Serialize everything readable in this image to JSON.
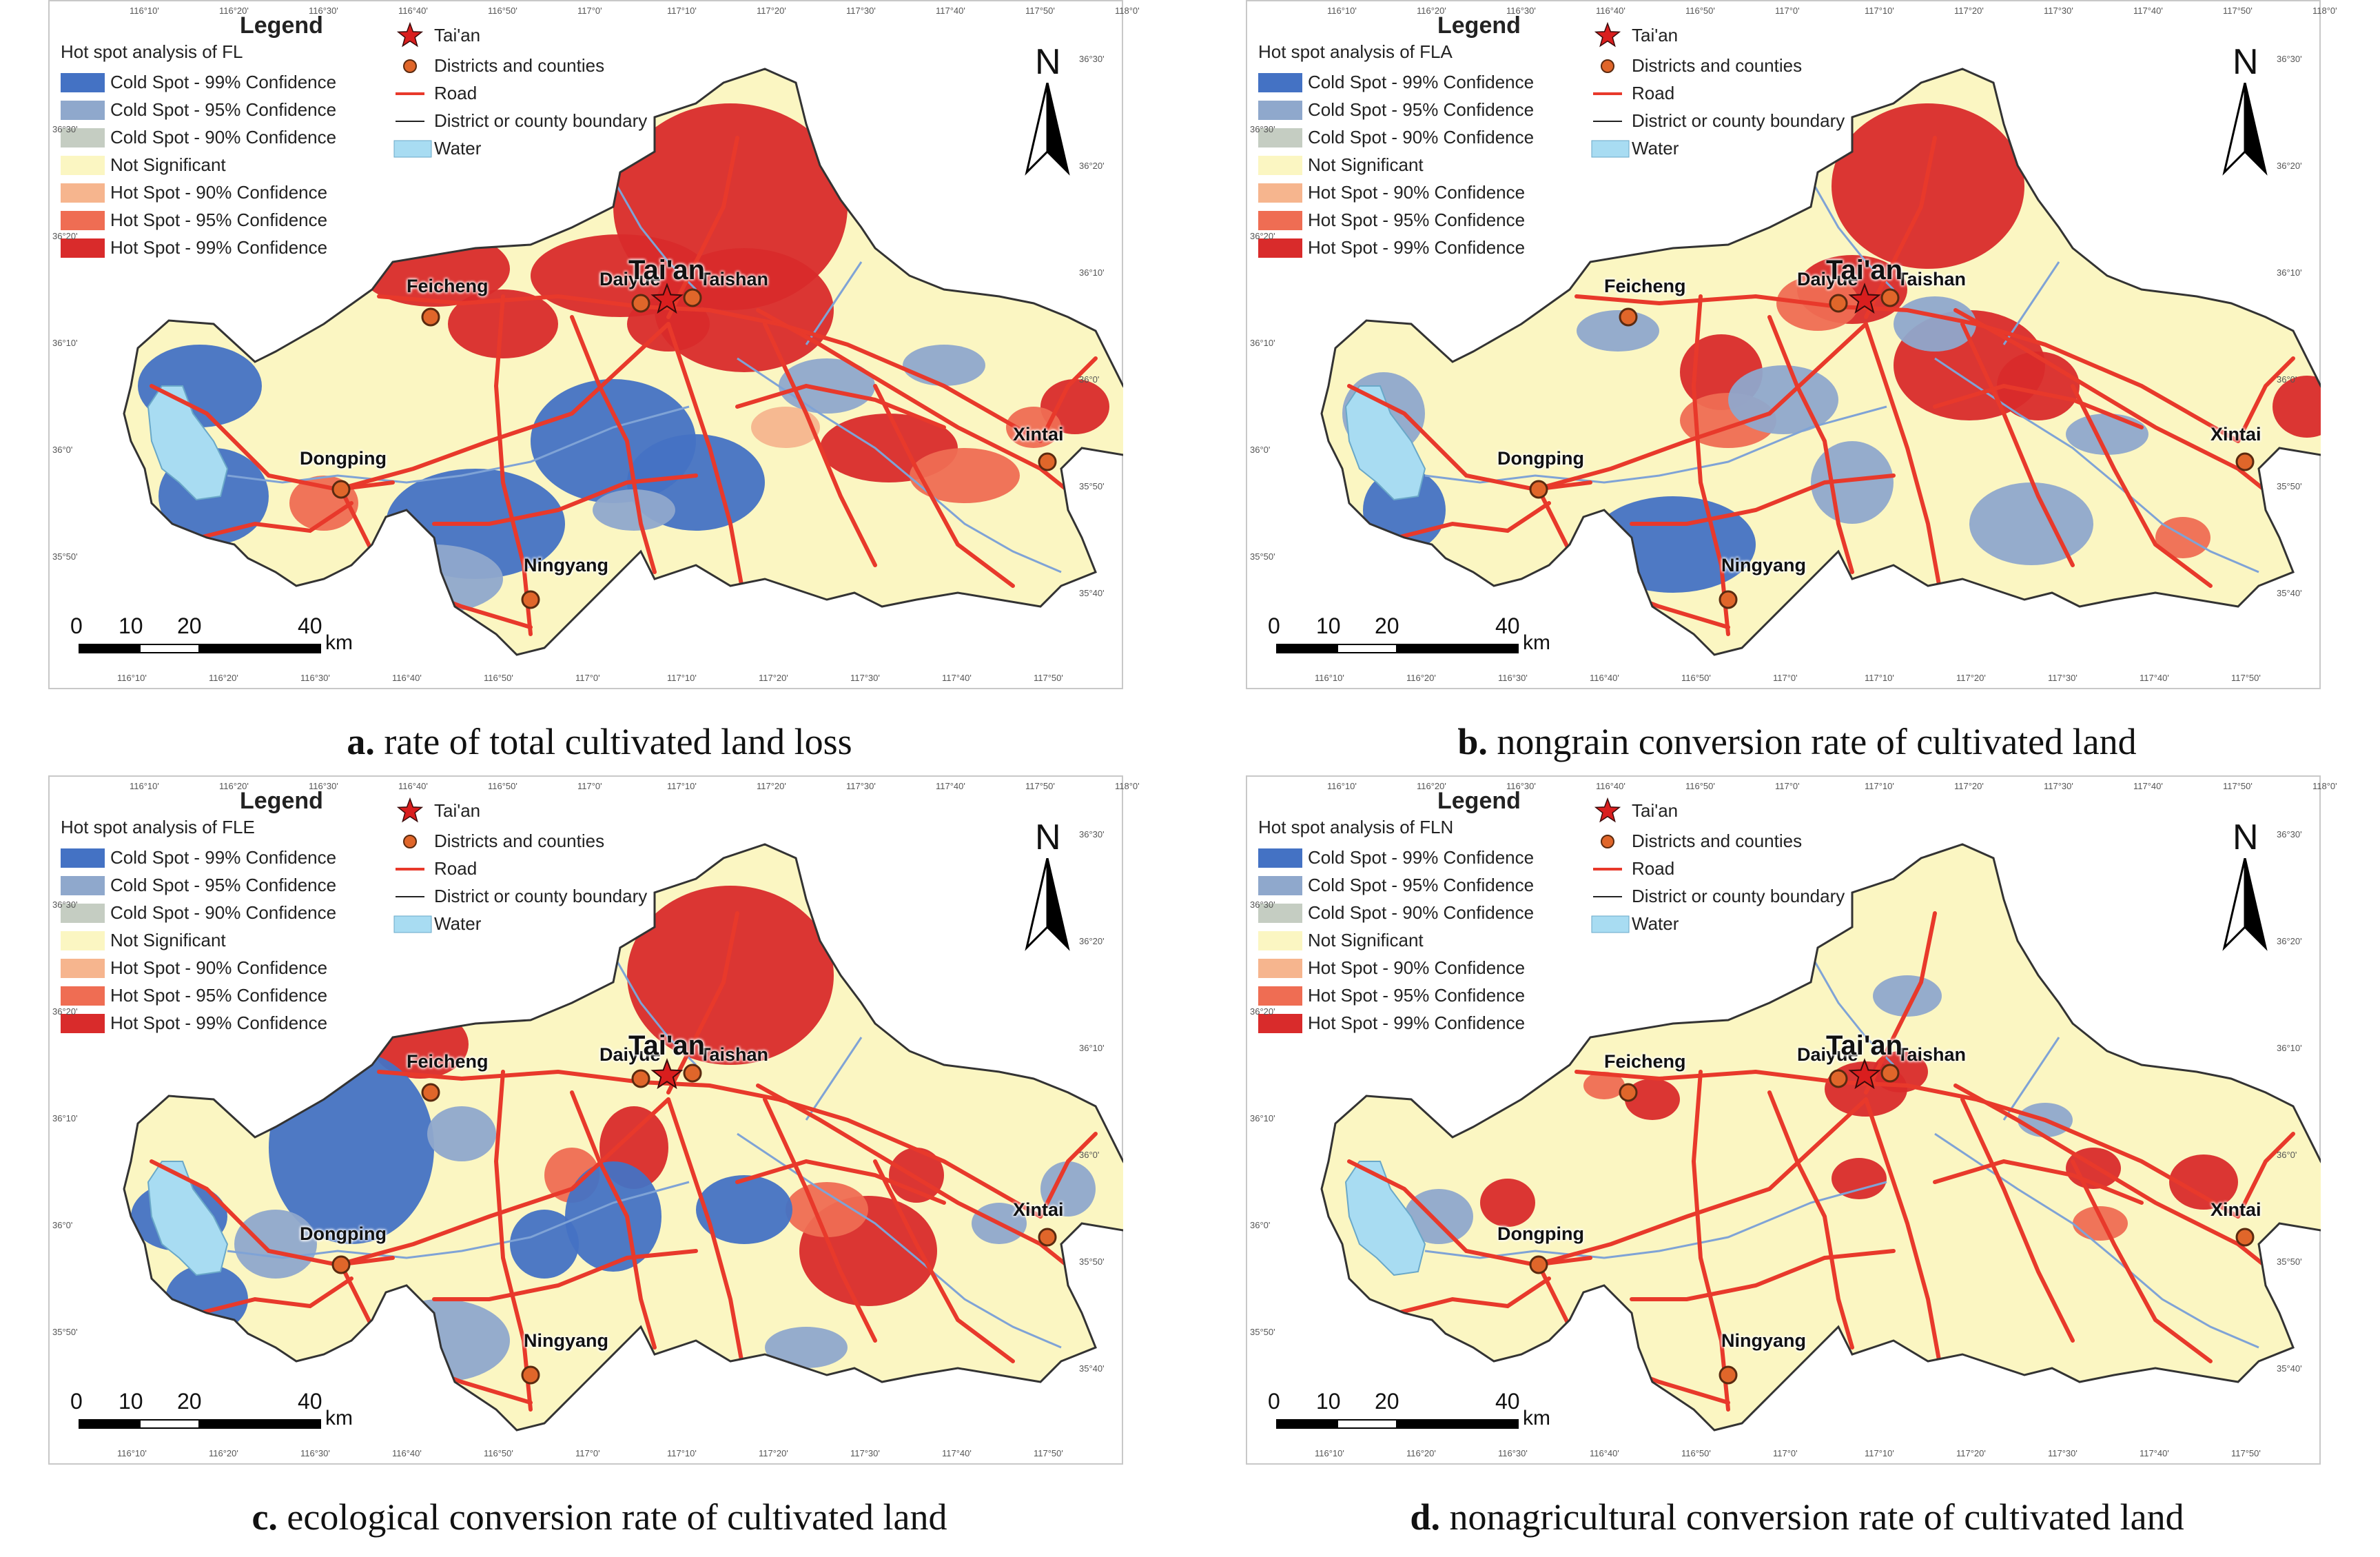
{
  "legend": {
    "title": "Legend",
    "classes": [
      {
        "label": "Cold Spot - 99% Confidence",
        "color": "#4472c4"
      },
      {
        "label": "Cold Spot - 95% Confidence",
        "color": "#8fa8cc"
      },
      {
        "label": "Cold Spot - 90% Confidence",
        "color": "#c5cdc2"
      },
      {
        "label": "Not Significant",
        "color": "#fbf6c2"
      },
      {
        "label": "Hot Spot - 90% Confidence",
        "color": "#f6b58e"
      },
      {
        "label": "Hot Spot - 95% Confidence",
        "color": "#ef6d53"
      },
      {
        "label": "Hot Spot - 99% Confidence",
        "color": "#d92b2b"
      }
    ],
    "features": {
      "city": "Tai'an",
      "districts": "Districts and counties",
      "road": "Road",
      "boundary": "District or county boundary",
      "water": "Water"
    }
  },
  "north_label": "N",
  "scale": {
    "ticks": [
      "0",
      "10",
      "20",
      "40"
    ],
    "unit": "km"
  },
  "places": {
    "feicheng": "Feicheng",
    "daiyue": "Daiyue",
    "taian": "Tai'an",
    "taishan": "Taishan",
    "dongping": "Dongping",
    "ningyang": "Ningyang",
    "xintai": "Xintai"
  },
  "grid": {
    "top_lon": [
      "116°10'",
      "116°20'",
      "116°30'",
      "116°40'",
      "116°50'",
      "117°0'",
      "117°10'",
      "117°20'",
      "117°30'",
      "117°40'",
      "117°50'",
      "118°0'"
    ],
    "bottom_lon": [
      "116°10'",
      "116°20'",
      "116°30'",
      "116°40'",
      "116°50'",
      "117°0'",
      "117°10'",
      "117°20'",
      "117°30'",
      "117°40'",
      "117°50'"
    ],
    "left_lat": [
      "36°30'",
      "36°20'",
      "36°10'",
      "36°0'",
      "35°50'"
    ],
    "right_lat": [
      "36°30'",
      "36°20'",
      "36°10'",
      "36°0'",
      "35°50'",
      "35°40'"
    ]
  },
  "panels": [
    {
      "subtitle": "Hot spot analysis of FL",
      "letter": "a.",
      "caption": "rate of total cultivated land loss"
    },
    {
      "subtitle": "Hot spot analysis of FLA",
      "letter": "b.",
      "caption": "nongrain conversion rate of cultivated land"
    },
    {
      "subtitle": "Hot spot analysis of FLE",
      "letter": "c.",
      "caption": "ecological conversion rate of cultivated land"
    },
    {
      "subtitle": "Hot spot analysis of FLN",
      "letter": "d.",
      "caption": "nonagricultural conversion rate of cultivated land"
    }
  ],
  "map_colors": {
    "background": "#fbf6c2",
    "road": "#e8392b",
    "boundary": "#333333",
    "water": "#a8dcf2",
    "river": "#7fa3d6",
    "city_star": "#d91e1e",
    "district_dot": "#e0662a"
  }
}
